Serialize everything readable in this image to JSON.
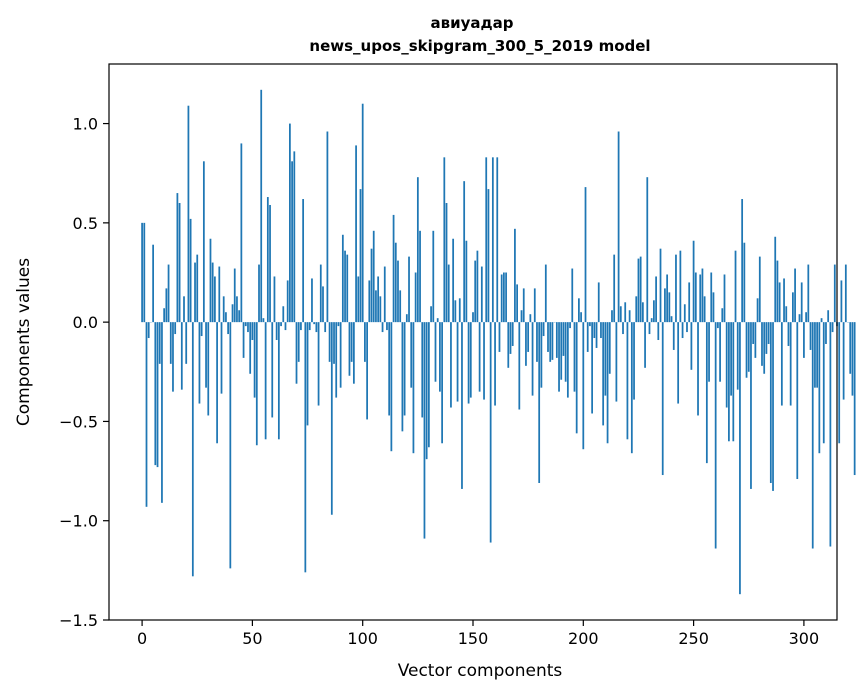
{
  "chart_data": {
    "type": "bar",
    "title": "авиуадар",
    "subtitle": "news_upos_skipgram_300_5_2019 model",
    "xlabel": "Vector components",
    "ylabel": "Components values",
    "xlim": [
      -15,
      315
    ],
    "ylim": [
      -1.5,
      1.3
    ],
    "xticks": [
      0,
      50,
      100,
      150,
      200,
      250,
      300
    ],
    "yticks": [
      -1.5,
      -1.0,
      -0.5,
      0.0,
      0.5,
      1.0
    ],
    "ytick_labels": [
      "−1.5",
      "−1.0",
      "−0.5",
      "0.0",
      "0.5",
      "1.0"
    ],
    "bar_color": "#1f77b4",
    "grid": false,
    "series": [
      {
        "values": [
          0.5,
          0.5,
          -0.93,
          -0.08,
          0.0,
          0.39,
          -0.72,
          -0.73,
          -0.21,
          -0.91,
          0.07,
          0.17,
          0.29,
          -0.21,
          -0.35,
          -0.06,
          0.65,
          0.6,
          -0.34,
          0.13,
          -0.21,
          1.09,
          0.52,
          -1.28,
          0.3,
          0.34,
          -0.41,
          -0.07,
          0.81,
          -0.33,
          -0.47,
          0.42,
          0.3,
          0.23,
          -0.61,
          0.28,
          -0.36,
          0.13,
          0.05,
          -0.06,
          -1.24,
          0.09,
          0.27,
          0.13,
          0.06,
          0.9,
          -0.18,
          -0.02,
          -0.05,
          -0.26,
          -0.09,
          -0.38,
          -0.62,
          0.29,
          1.17,
          0.02,
          -0.59,
          0.63,
          0.59,
          -0.48,
          0.23,
          -0.09,
          -0.59,
          -0.02,
          0.08,
          -0.04,
          0.21,
          1.0,
          0.81,
          0.86,
          -0.31,
          -0.2,
          -0.04,
          0.62,
          -1.26,
          -0.52,
          -0.04,
          0.22,
          -0.01,
          -0.05,
          -0.42,
          0.29,
          0.18,
          -0.05,
          0.96,
          -0.2,
          -0.97,
          -0.21,
          -0.38,
          -0.02,
          -0.33,
          0.44,
          0.36,
          0.34,
          -0.27,
          -0.2,
          -0.31,
          0.89,
          0.23,
          0.67,
          1.1,
          -0.2,
          -0.49,
          0.21,
          0.37,
          0.46,
          0.16,
          0.23,
          0.13,
          -0.05,
          0.28,
          -0.04,
          -0.47,
          -0.65,
          0.54,
          0.4,
          0.31,
          0.16,
          -0.55,
          -0.47,
          0.04,
          0.33,
          -0.33,
          -0.66,
          0.25,
          0.73,
          0.46,
          -0.48,
          -1.09,
          -0.69,
          -0.63,
          0.08,
          0.46,
          -0.3,
          0.02,
          -0.35,
          -0.61,
          0.83,
          0.6,
          0.29,
          -0.43,
          0.42,
          0.11,
          -0.4,
          0.12,
          -0.84,
          0.71,
          0.41,
          -0.41,
          -0.38,
          0.05,
          0.31,
          0.36,
          -0.35,
          0.28,
          -0.39,
          0.83,
          0.67,
          -1.11,
          0.83,
          -0.42,
          0.83,
          -0.15,
          0.24,
          0.25,
          0.25,
          -0.23,
          -0.16,
          -0.12,
          0.47,
          0.19,
          -0.44,
          0.06,
          0.17,
          -0.22,
          -0.15,
          0.04,
          -0.37,
          0.17,
          -0.2,
          -0.81,
          -0.33,
          -0.07,
          0.29,
          -0.15,
          -0.2,
          -0.19,
          0.0,
          -0.18,
          -0.35,
          -0.29,
          -0.17,
          -0.3,
          -0.38,
          -0.03,
          0.27,
          -0.35,
          -0.56,
          0.12,
          0.05,
          -0.64,
          0.68,
          -0.15,
          -0.02,
          -0.46,
          -0.08,
          -0.13,
          0.2,
          -0.08,
          -0.52,
          -0.37,
          -0.61,
          -0.26,
          0.06,
          0.34,
          -0.4,
          0.96,
          0.08,
          -0.06,
          0.1,
          -0.59,
          0.06,
          -0.66,
          -0.39,
          0.13,
          0.32,
          0.33,
          0.1,
          -0.23,
          0.73,
          -0.06,
          0.02,
          0.11,
          0.23,
          -0.09,
          0.37,
          -0.77,
          0.17,
          0.24,
          0.15,
          0.03,
          -0.14,
          0.34,
          -0.41,
          0.36,
          -0.08,
          0.09,
          -0.05,
          0.2,
          -0.24,
          0.41,
          0.25,
          -0.47,
          0.24,
          0.27,
          0.13,
          -0.71,
          -0.3,
          0.25,
          0.15,
          -1.14,
          -0.03,
          -0.3,
          0.07,
          0.24,
          -0.43,
          -0.6,
          -0.37,
          -0.6,
          0.36,
          -0.34,
          -1.37,
          0.62,
          0.4,
          -0.28,
          -0.25,
          -0.84,
          -0.11,
          -0.18,
          0.12,
          0.33,
          -0.22,
          -0.26,
          -0.16,
          -0.11,
          -0.81,
          -0.85,
          0.43,
          0.31,
          0.2,
          -0.42,
          0.22,
          0.08,
          -0.12,
          -0.42,
          0.15,
          0.27,
          -0.79,
          0.04,
          0.2,
          -0.18,
          0.05,
          0.29,
          -0.14,
          -1.14,
          -0.33,
          -0.33,
          -0.66,
          0.02,
          -0.61,
          -0.11,
          0.06,
          -1.13,
          -0.05,
          0.29,
          -0.02,
          -0.61,
          0.21,
          -0.39,
          0.29,
          0.0,
          -0.26,
          -0.37,
          -0.77
        ]
      }
    ]
  }
}
